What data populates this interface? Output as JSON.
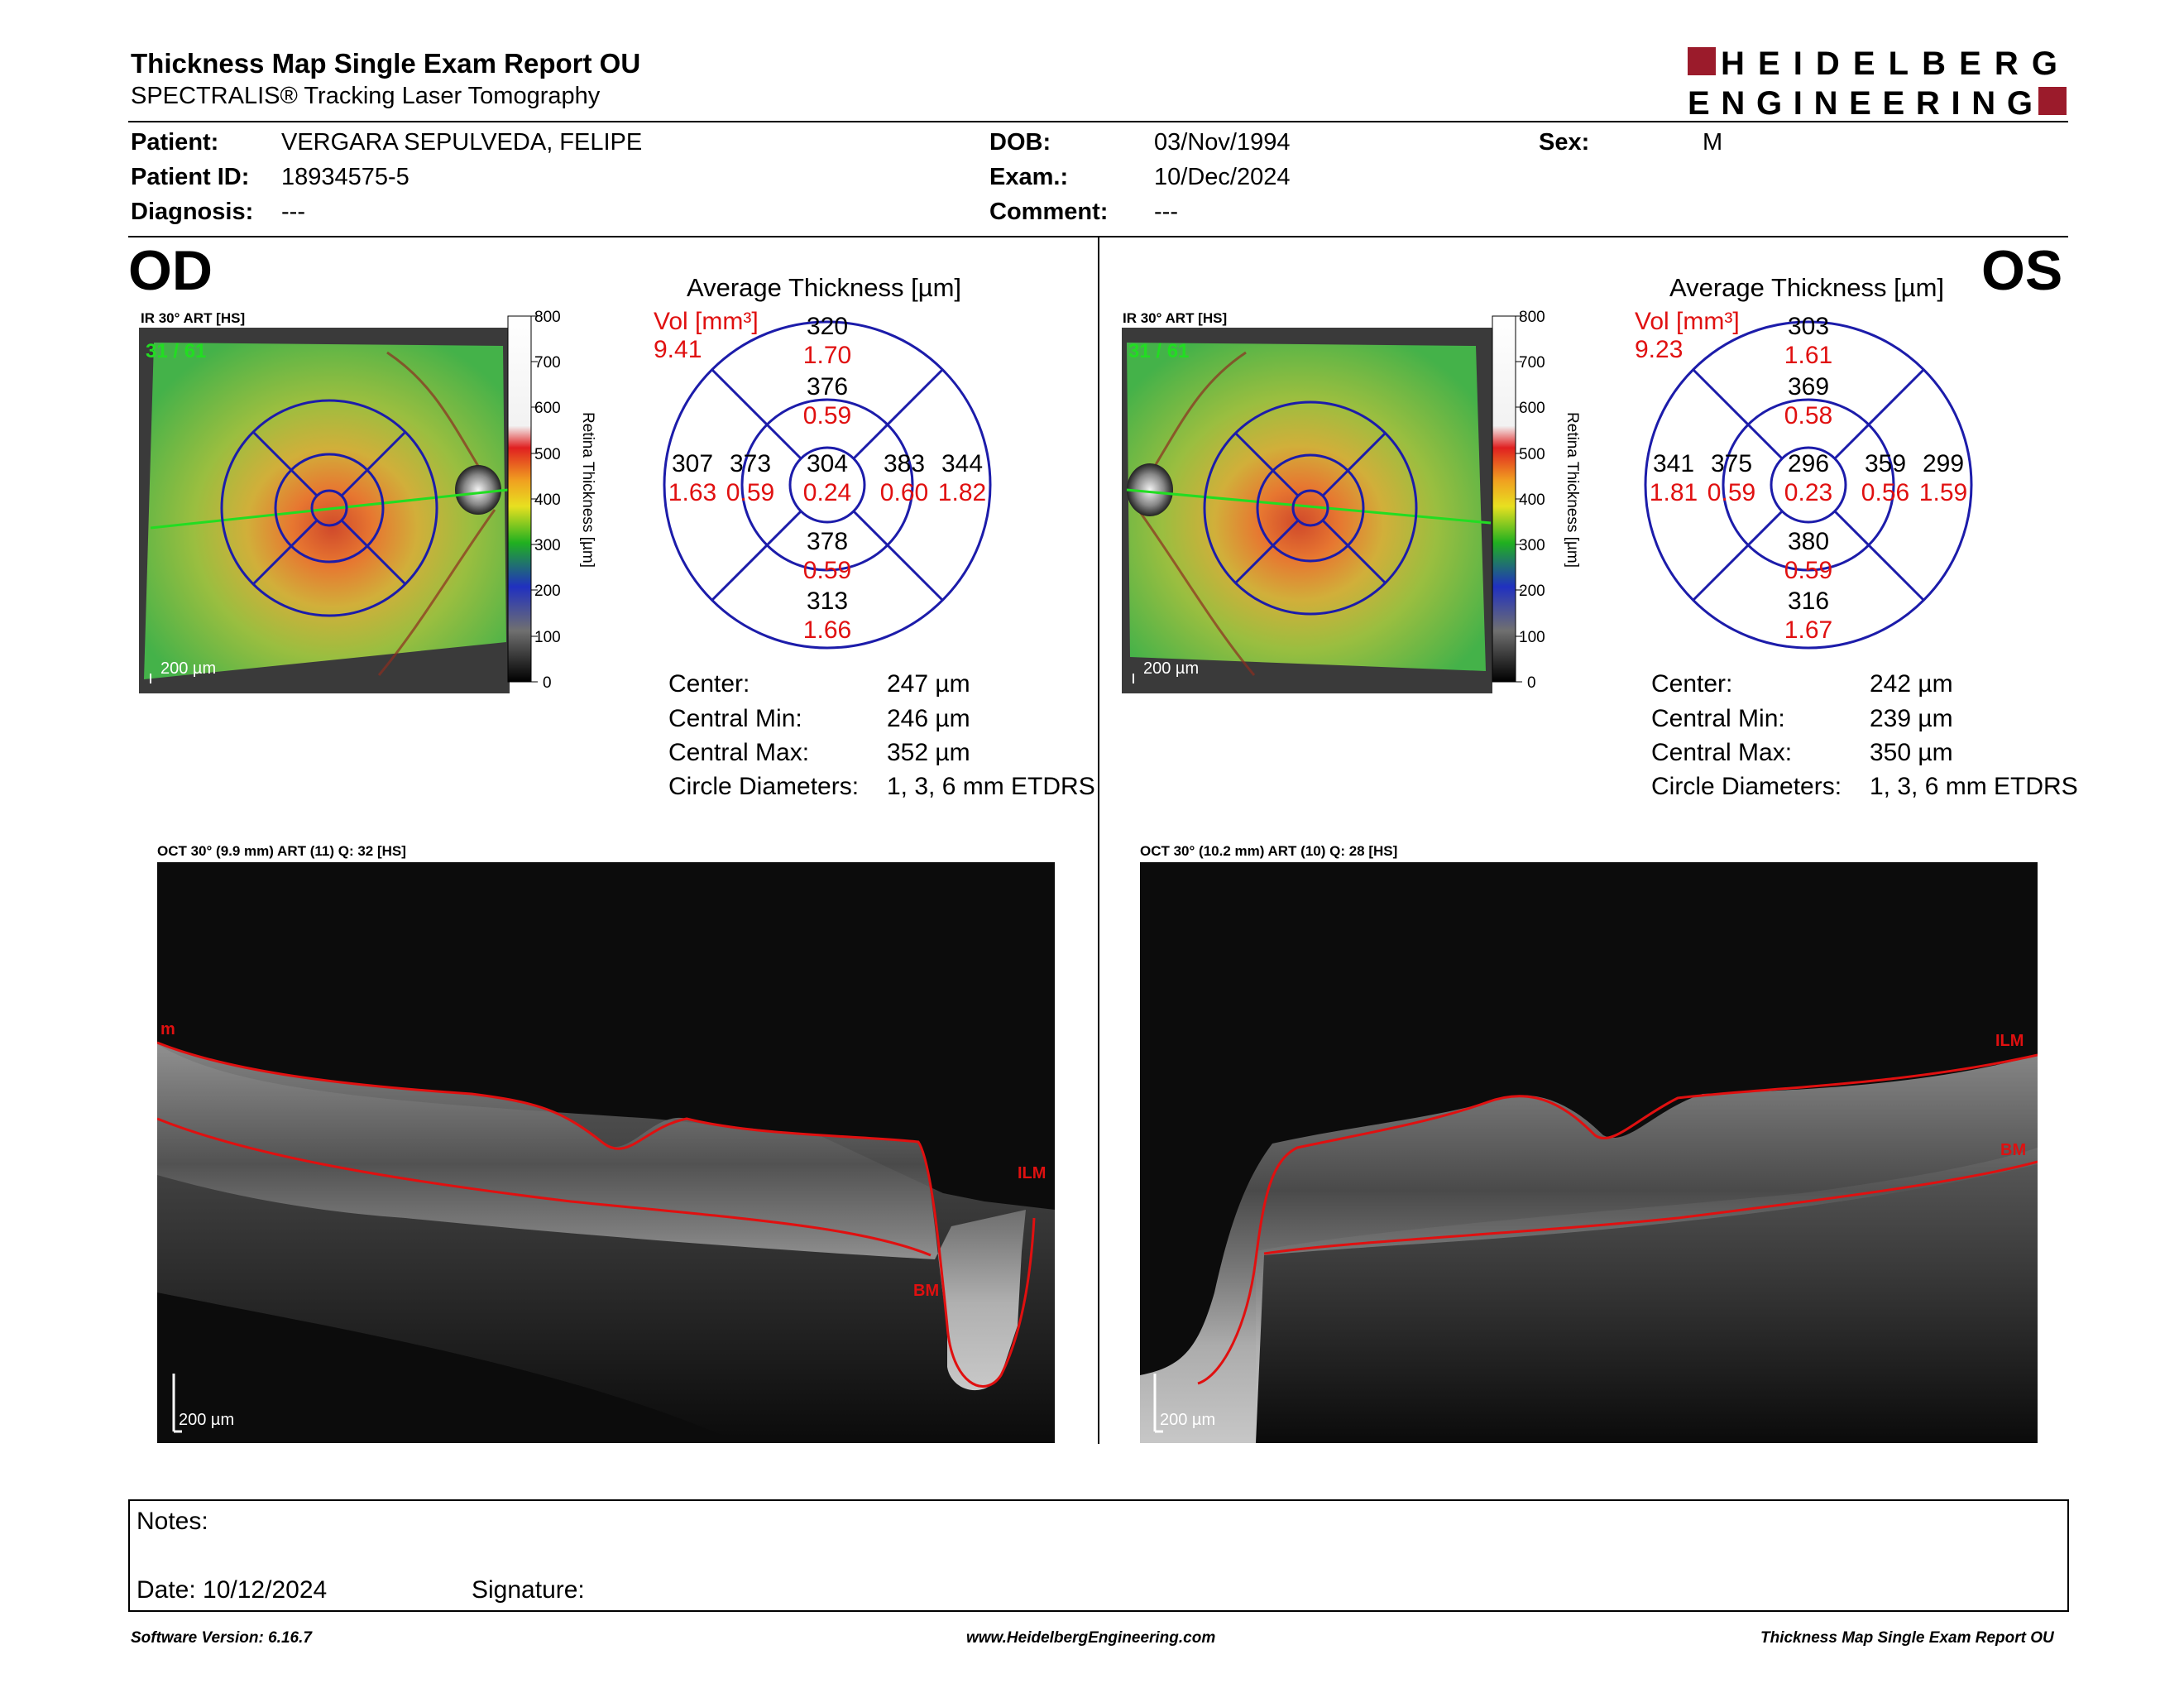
{
  "header": {
    "title": "Thickness Map Single Exam Report OU",
    "subtitle": "SPECTRALIS® Tracking Laser Tomography",
    "logo_line1": "HEIDELBERG",
    "logo_line2": "ENGINEERING",
    "brand_color": "#9b1b2b"
  },
  "patient": {
    "patient_label": "Patient:",
    "patient_value": "VERGARA SEPULVEDA, FELIPE",
    "id_label": "Patient ID:",
    "id_value": "18934575-5",
    "diagnosis_label": "Diagnosis:",
    "diagnosis_value": "---",
    "dob_label": "DOB:",
    "dob_value": "03/Nov/1994",
    "exam_label": "Exam.:",
    "exam_value": "10/Dec/2024",
    "comment_label": "Comment:",
    "comment_value": "---",
    "sex_label": "Sex:",
    "sex_value": "M"
  },
  "od": {
    "eye": "OD",
    "ir_label": "IR 30° ART [HS]",
    "frame": "31 / 61",
    "scale_label": "200 µm",
    "scale_ticks": [
      "800",
      "700",
      "600",
      "500",
      "400",
      "300",
      "200",
      "100",
      "0"
    ],
    "scale_axis": "Retina Thickness [µm]",
    "avg_title": "Average Thickness [µm]",
    "vol_label": "Vol [mm³]",
    "vol_value": "9.41",
    "etdrs": {
      "center_t": "304",
      "center_v": "0.24",
      "inner_sup_t": "376",
      "inner_sup_v": "0.59",
      "inner_inf_t": "378",
      "inner_inf_v": "0.59",
      "inner_left_t": "373",
      "inner_left_v": "0.59",
      "inner_right_t": "383",
      "inner_right_v": "0.60",
      "outer_sup_t": "320",
      "outer_sup_v": "1.70",
      "outer_inf_t": "313",
      "outer_inf_v": "1.66",
      "outer_left_t": "307",
      "outer_left_v": "1.63",
      "outer_right_t": "344",
      "outer_right_v": "1.82"
    },
    "stats": {
      "center_label": "Center:",
      "center_value": "247 µm",
      "min_label": "Central Min:",
      "min_value": "246 µm",
      "max_label": "Central Max:",
      "max_value": "352 µm",
      "diam_label": "Circle Diameters:",
      "diam_value": "1, 3, 6 mm ETDRS"
    },
    "oct_label": "OCT 30° (9.9 mm) ART (11) Q: 32 [HS]",
    "oct_scale": "200 µm",
    "ilm_label": "ILM",
    "bm_label": "BM",
    "ilm_edge_label": "m"
  },
  "os": {
    "eye": "OS",
    "ir_label": "IR 30° ART [HS]",
    "frame": "31 / 61",
    "scale_label": "200 µm",
    "scale_ticks": [
      "800",
      "700",
      "600",
      "500",
      "400",
      "300",
      "200",
      "100",
      "0"
    ],
    "scale_axis": "Retina Thickness [µm]",
    "avg_title": "Average Thickness [µm]",
    "vol_label": "Vol [mm³]",
    "vol_value": "9.23",
    "etdrs": {
      "center_t": "296",
      "center_v": "0.23",
      "inner_sup_t": "369",
      "inner_sup_v": "0.58",
      "inner_inf_t": "380",
      "inner_inf_v": "0.59",
      "inner_left_t": "375",
      "inner_left_v": "0.59",
      "inner_right_t": "359",
      "inner_right_v": "0.56",
      "outer_sup_t": "303",
      "outer_sup_v": "1.61",
      "outer_inf_t": "316",
      "outer_inf_v": "1.67",
      "outer_left_t": "341",
      "outer_left_v": "1.81",
      "outer_right_t": "299",
      "outer_right_v": "1.59"
    },
    "stats": {
      "center_label": "Center:",
      "center_value": "242 µm",
      "min_label": "Central Min:",
      "min_value": "239 µm",
      "max_label": "Central Max:",
      "max_value": "350 µm",
      "diam_label": "Circle Diameters:",
      "diam_value": "1, 3, 6 mm ETDRS"
    },
    "oct_label": "OCT 30° (10.2 mm) ART (10) Q: 28 [HS]",
    "oct_scale": "200 µm",
    "ilm_label": "ILM",
    "bm_label": "BM"
  },
  "notes": {
    "notes_label": "Notes:",
    "date_label": "Date: 10/12/2024",
    "signature_label": "Signature:"
  },
  "footer": {
    "software": "Software Version: 6.16.7",
    "website": "www.HeidelbergEngineering.com",
    "report": "Thickness Map Single Exam Report OU"
  },
  "colors": {
    "grid_blue": "#1c1caa",
    "value_red": "#e01010",
    "scan_green": "#22dd22",
    "segmentation_red": "#e01010"
  }
}
